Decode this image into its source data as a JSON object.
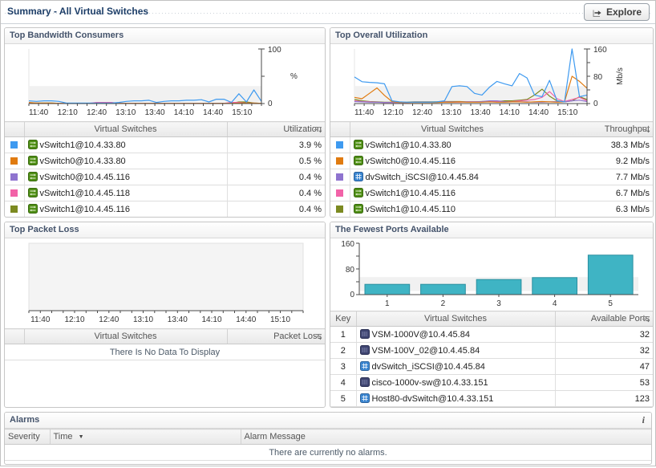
{
  "header": {
    "title": "Summary - All Virtual Switches",
    "explore_label": "Explore"
  },
  "panels": {
    "bandwidth": {
      "title": "Top Bandwidth Consumers",
      "table": {
        "headers": {
          "name": "Virtual Switches",
          "value": "Utilization"
        },
        "rows": [
          {
            "color": "#3e9af0",
            "icon": "vswitch-green",
            "name": "vSwitch1@10.4.33.80",
            "value": "3.9 %"
          },
          {
            "color": "#e07b10",
            "icon": "vswitch-green",
            "name": "vSwitch0@10.4.33.80",
            "value": "0.5 %"
          },
          {
            "color": "#8f74cf",
            "icon": "vswitch-green",
            "name": "vSwitch0@10.4.45.116",
            "value": "0.4 %"
          },
          {
            "color": "#f263a8",
            "icon": "vswitch-green",
            "name": "vSwitch1@10.4.45.118",
            "value": "0.4 %"
          },
          {
            "color": "#7c8a21",
            "icon": "vswitch-green",
            "name": "vSwitch1@10.4.45.116",
            "value": "0.4 %"
          }
        ]
      }
    },
    "utilization": {
      "title": "Top Overall Utilization",
      "table": {
        "headers": {
          "name": "Virtual Switches",
          "value": "Throughput"
        },
        "rows": [
          {
            "color": "#3e9af0",
            "icon": "vswitch-green",
            "name": "vSwitch1@10.4.33.80",
            "value": "38.3 Mb/s"
          },
          {
            "color": "#e07b10",
            "icon": "vswitch-green",
            "name": "vSwitch0@10.4.45.116",
            "value": "9.2 Mb/s"
          },
          {
            "color": "#8f74cf",
            "icon": "dvswitch-blue",
            "name": "dvSwitch_iSCSI@10.4.45.84",
            "value": "7.7 Mb/s"
          },
          {
            "color": "#f263a8",
            "icon": "vswitch-green",
            "name": "vSwitch1@10.4.45.116",
            "value": "6.7 Mb/s"
          },
          {
            "color": "#7c8a21",
            "icon": "vswitch-green",
            "name": "vSwitch1@10.4.45.110",
            "value": "6.3 Mb/s"
          }
        ]
      }
    },
    "packet_loss": {
      "title": "Top Packet Loss",
      "table": {
        "headers": {
          "name": "Virtual Switches",
          "value": "Packet Loss"
        },
        "empty": "There Is No Data To Display"
      }
    },
    "ports": {
      "title": "The Fewest Ports Available",
      "table": {
        "headers": {
          "key": "Key",
          "name": "Virtual Switches",
          "value": "Available Ports"
        },
        "rows": [
          {
            "key": "1",
            "icon": "cisco-navy",
            "name": "VSM-1000V@10.4.45.84",
            "value": "32"
          },
          {
            "key": "2",
            "icon": "cisco-navy",
            "name": "VSM-100V_02@10.4.45.84",
            "value": "32"
          },
          {
            "key": "3",
            "icon": "dvswitch-blue",
            "name": "dvSwitch_iSCSI@10.4.45.84",
            "value": "47"
          },
          {
            "key": "4",
            "icon": "cisco-navy",
            "name": "cisco-1000v-sw@10.4.33.151",
            "value": "53"
          },
          {
            "key": "5",
            "icon": "dvswitch-blue",
            "name": "Host80-dvSwitch@10.4.33.151",
            "value": "123"
          }
        ]
      }
    },
    "alarms": {
      "title": "Alarms",
      "info_icon": "i",
      "table": {
        "headers": {
          "severity": "Severity",
          "time": "Time",
          "message": "Alarm Message"
        },
        "empty": "There are currently no alarms."
      }
    }
  },
  "chart_data": [
    {
      "type": "line",
      "title": "Top Bandwidth Consumers",
      "yaxis": "right",
      "ylim": [
        0,
        100
      ],
      "y_divs": 2,
      "ymax_label": "100",
      "ymid_label": "",
      "ymin_label": "0",
      "unit": "%",
      "unit_rotated": false,
      "band": true,
      "x_ticks": [
        "11:40",
        "12:10",
        "12:40",
        "13:10",
        "13:40",
        "14:10",
        "14:40",
        "15:10"
      ],
      "series": [
        {
          "name": "vSwitch1@10.4.33.80",
          "color": "#3e9af0",
          "values": [
            5,
            4,
            5,
            5,
            4,
            1,
            1,
            1,
            1,
            1,
            1,
            1,
            2,
            4,
            5,
            5,
            6,
            2,
            4,
            5,
            5,
            6,
            6,
            7,
            3,
            8,
            8,
            2,
            18,
            3,
            25,
            4
          ]
        },
        {
          "name": "vSwitch0@10.4.33.80",
          "color": "#e07b10",
          "values": [
            2,
            1,
            1,
            1,
            0.5,
            0.5,
            0.5,
            0.5,
            0.5,
            0.5,
            0.5,
            0.5,
            0.5,
            0.5,
            0.5,
            0.5,
            0.5,
            0.5,
            0.5,
            0.5,
            0.5,
            0.5,
            0.5,
            0.5,
            0.5,
            0.5,
            0.5,
            0.5,
            1,
            1,
            1,
            0.5
          ]
        },
        {
          "name": "vSwitch0@10.4.45.116",
          "color": "#8f74cf",
          "values": [
            1,
            0.8,
            0.5,
            0.5,
            0.5,
            0.5,
            0.5,
            0.5,
            0.5,
            0.5,
            0.5,
            0.5,
            0.5,
            0.5,
            0.5,
            0.5,
            0.5,
            0.5,
            0.5,
            0.5,
            0.5,
            0.5,
            0.5,
            0.5,
            0.5,
            0.5,
            0.5,
            0.5,
            0.5,
            1,
            0.8,
            0.5
          ]
        },
        {
          "name": "vSwitch1@10.4.45.118",
          "color": "#f263a8",
          "values": [
            1,
            0.5,
            0.5,
            0.5,
            0.5,
            0.5,
            0.5,
            0.5,
            0.5,
            2,
            2,
            2,
            0.5,
            0.5,
            0.5,
            0.5,
            0.5,
            0.5,
            0.5,
            0.5,
            0.5,
            0.5,
            0.5,
            0.5,
            0.5,
            0.5,
            0.5,
            2,
            2,
            1,
            0.5,
            0.5
          ]
        },
        {
          "name": "vSwitch1@10.4.45.116",
          "color": "#7c8a21",
          "values": [
            1,
            1,
            1,
            1,
            0.5,
            0.5,
            0.5,
            0.5,
            0.5,
            0.5,
            0.5,
            0.5,
            0.5,
            0.5,
            0.5,
            0.5,
            0.5,
            0.5,
            0.5,
            0.5,
            0.5,
            0.5,
            0.5,
            0.5,
            0.5,
            0.5,
            0.5,
            0.5,
            3,
            3,
            1,
            0.5
          ]
        }
      ]
    },
    {
      "type": "line",
      "title": "Top Overall Utilization",
      "yaxis": "right",
      "ylim": [
        0,
        160
      ],
      "y_divs": 4,
      "ymax_label": "160",
      "ymid_label": "80",
      "ymin_label": "0",
      "unit": "Mb/s",
      "unit_rotated": true,
      "band": true,
      "x_ticks": [
        "11:40",
        "12:10",
        "12:40",
        "13:10",
        "13:40",
        "14:10",
        "14:40",
        "15:10"
      ],
      "series": [
        {
          "name": "vSwitch1@10.4.33.80",
          "color": "#3e9af0",
          "values": [
            78,
            64,
            62,
            61,
            58,
            8,
            5,
            4,
            4,
            4,
            4,
            5,
            8,
            50,
            52,
            50,
            30,
            25,
            48,
            65,
            58,
            52,
            88,
            75,
            25,
            20,
            68,
            8,
            5,
            160,
            20,
            25
          ]
        },
        {
          "name": "vSwitch0@10.4.45.116",
          "color": "#e07b10",
          "values": [
            18,
            14,
            30,
            46,
            24,
            6,
            3,
            3,
            3,
            3,
            3,
            3,
            4,
            4,
            5,
            4,
            4,
            4,
            5,
            4,
            4,
            5,
            5,
            4,
            5,
            6,
            5,
            4,
            5,
            80,
            65,
            45
          ]
        },
        {
          "name": "dvSwitch_iSCSI@10.4.45.84",
          "color": "#8f74cf",
          "values": [
            6,
            5,
            4,
            4,
            3,
            3,
            3,
            3,
            4,
            4,
            4,
            4,
            5,
            5,
            5,
            5,
            5,
            6,
            8,
            8,
            6,
            5,
            5,
            5,
            4,
            4,
            5,
            6,
            5,
            8,
            10,
            6
          ]
        },
        {
          "name": "vSwitch1@10.4.45.116",
          "color": "#f263a8",
          "values": [
            8,
            6,
            5,
            4,
            3,
            3,
            3,
            3,
            4,
            4,
            4,
            4,
            5,
            4,
            4,
            5,
            5,
            5,
            6,
            6,
            5,
            6,
            8,
            10,
            12,
            18,
            35,
            14,
            6,
            12,
            18,
            8
          ]
        },
        {
          "name": "vSwitch1@10.4.45.110",
          "color": "#7c8a21",
          "values": [
            12,
            8,
            6,
            5,
            4,
            4,
            4,
            4,
            5,
            5,
            5,
            5,
            6,
            6,
            6,
            5,
            5,
            6,
            6,
            6,
            8,
            8,
            10,
            12,
            25,
            42,
            22,
            8,
            5,
            8,
            20,
            12
          ]
        }
      ]
    },
    {
      "type": "line",
      "title": "Top Packet Loss",
      "yaxis": "none",
      "ylim": [
        0,
        1
      ],
      "plot_bg": "#f4f4f4",
      "band": false,
      "x_ticks": [
        "11:40",
        "12:10",
        "12:40",
        "13:10",
        "13:40",
        "14:10",
        "14:40",
        "15:10"
      ],
      "series": []
    },
    {
      "type": "bar",
      "title": "The Fewest Ports Available",
      "categories": [
        "1",
        "2",
        "3",
        "4",
        "5"
      ],
      "values": [
        32,
        32,
        47,
        53,
        123
      ],
      "ylim": [
        0,
        160
      ],
      "y_ticks": [
        0,
        80,
        160
      ],
      "ymax_label": "160",
      "ymid_label": "80",
      "ymin_label": "0",
      "bar_color": "#3fb4c4",
      "bar_border": "#2a8fa0"
    }
  ]
}
